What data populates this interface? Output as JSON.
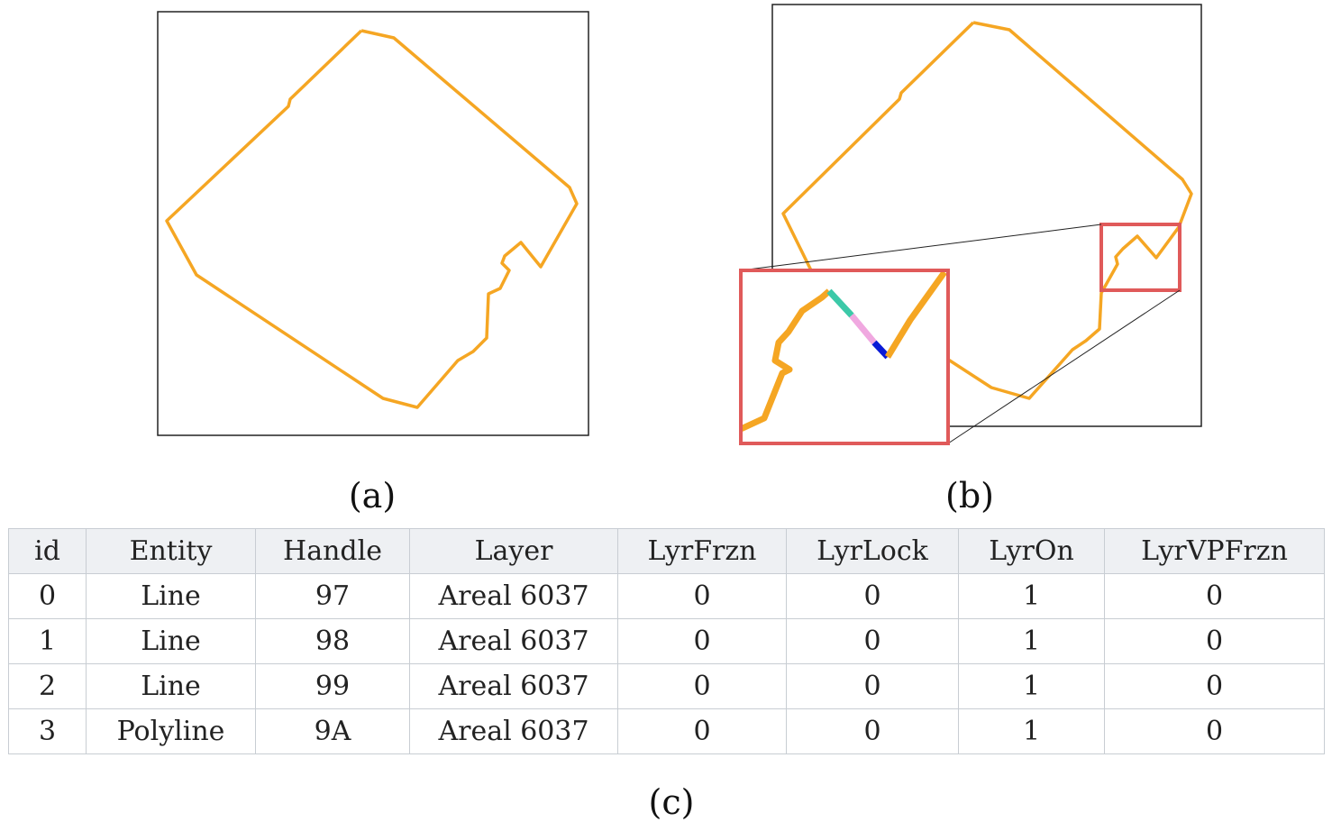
{
  "panels": {
    "a": {
      "caption": "(a)"
    },
    "b": {
      "caption": "(b)"
    },
    "c": {
      "caption": "(c)"
    }
  },
  "colors": {
    "outline": "#f5a623",
    "frame": "#222222",
    "highlight_box": "#e05a5a",
    "segment_teal": "#3cc9a8",
    "segment_pink": "#f0a8e0",
    "segment_blue": "#0a1ad6"
  },
  "table": {
    "headers": [
      "id",
      "Entity",
      "Handle",
      "Layer",
      "LyrFrzn",
      "LyrLock",
      "LyrOn",
      "LyrVPFrzn"
    ],
    "rows": [
      [
        "0",
        "Line",
        "97",
        "Areal 6037",
        "0",
        "0",
        "1",
        "0"
      ],
      [
        "1",
        "Line",
        "98",
        "Areal 6037",
        "0",
        "0",
        "1",
        "0"
      ],
      [
        "2",
        "Line",
        "99",
        "Areal 6037",
        "0",
        "0",
        "1",
        "0"
      ],
      [
        "3",
        "Polyline",
        "9A",
        "Areal 6037",
        "0",
        "0",
        "1",
        "0"
      ]
    ]
  }
}
